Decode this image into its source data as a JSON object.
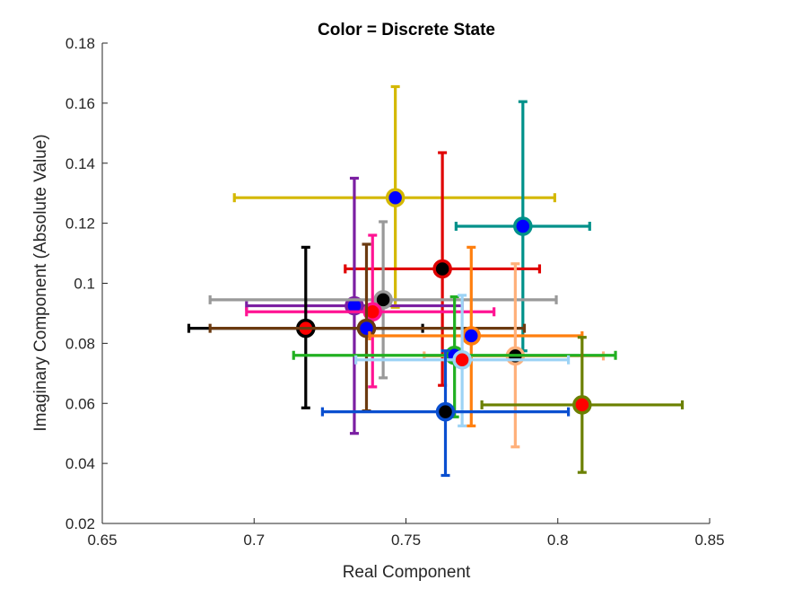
{
  "chart_data": {
    "type": "scatter",
    "title": "Color = Discrete State",
    "xlabel": "Real Component",
    "ylabel": "Imaginary Component (Absolute Value)",
    "xlim": [
      0.65,
      0.85
    ],
    "ylim": [
      0.02,
      0.18
    ],
    "xticks": [
      "0.65",
      "0.7",
      "0.75",
      "0.8",
      "0.85"
    ],
    "yticks": [
      "0.02",
      "0.04",
      "0.06",
      "0.08",
      "0.1",
      "0.12",
      "0.14",
      "0.16",
      "0.18"
    ],
    "grid": false,
    "series": [
      {
        "color": "#D4B800",
        "fill": "#0000FF",
        "x": 0.7465,
        "y": 0.1285,
        "xerr": [
          0.6935,
          0.799
        ],
        "yerr": [
          0.092,
          0.1655
        ]
      },
      {
        "color": "#00918A",
        "fill": "#0000FF",
        "x": 0.7885,
        "y": 0.119,
        "xerr": [
          0.7665,
          0.8105
        ],
        "yerr": [
          0.0775,
          0.1605
        ]
      },
      {
        "color": "#E00000",
        "fill": "#000000",
        "x": 0.762,
        "y": 0.1048,
        "xerr": [
          0.73,
          0.794
        ],
        "yerr": [
          0.066,
          0.1435
        ]
      },
      {
        "color": "#7B1FA2",
        "fill": "#0000FF",
        "x": 0.733,
        "y": 0.0925,
        "xerr": [
          0.6975,
          0.7685
        ],
        "yerr": [
          0.05,
          0.135
        ]
      },
      {
        "color": "#999999",
        "fill": "#000000",
        "x": 0.7425,
        "y": 0.0945,
        "xerr": [
          0.6855,
          0.7995
        ],
        "yerr": [
          0.0685,
          0.1205
        ]
      },
      {
        "color": "#FF1493",
        "fill": "#FF0000",
        "x": 0.739,
        "y": 0.0905,
        "xerr": [
          0.6975,
          0.779
        ],
        "yerr": [
          0.0655,
          0.116
        ]
      },
      {
        "color": "#000000",
        "fill": "#FF0000",
        "x": 0.717,
        "y": 0.085,
        "xerr": [
          0.6785,
          0.7555
        ],
        "yerr": [
          0.0585,
          0.112
        ]
      },
      {
        "color": "#6B3A10",
        "fill": "#0000FF",
        "x": 0.737,
        "y": 0.085,
        "xerr": [
          0.6855,
          0.789
        ],
        "yerr": [
          0.0575,
          0.113
        ]
      },
      {
        "color": "#FF7F0E",
        "fill": "#0000FF",
        "x": 0.7715,
        "y": 0.0825,
        "xerr": [
          0.738,
          0.808
        ],
        "yerr": [
          0.0525,
          0.112
        ]
      },
      {
        "color": "#FFB07A",
        "fill": "#000000",
        "x": 0.786,
        "y": 0.0758,
        "xerr": [
          0.756,
          0.815
        ],
        "yerr": [
          0.0455,
          0.1065
        ]
      },
      {
        "color": "#22B022",
        "fill": "#0000FF",
        "x": 0.766,
        "y": 0.076,
        "xerr": [
          0.713,
          0.819
        ],
        "yerr": [
          0.0555,
          0.0955
        ]
      },
      {
        "color": "#9DD3F5",
        "fill": "#FF0000",
        "x": 0.7685,
        "y": 0.0745,
        "xerr": [
          0.7335,
          0.8035
        ],
        "yerr": [
          0.0525,
          0.096
        ]
      },
      {
        "color": "#0A4FD0",
        "fill": "#000000",
        "x": 0.763,
        "y": 0.0572,
        "xerr": [
          0.7225,
          0.8035
        ],
        "yerr": [
          0.036,
          0.0775
        ]
      },
      {
        "color": "#6B8000",
        "fill": "#FF0000",
        "x": 0.808,
        "y": 0.0595,
        "xerr": [
          0.775,
          0.841
        ],
        "yerr": [
          0.037,
          0.082
        ]
      }
    ]
  }
}
